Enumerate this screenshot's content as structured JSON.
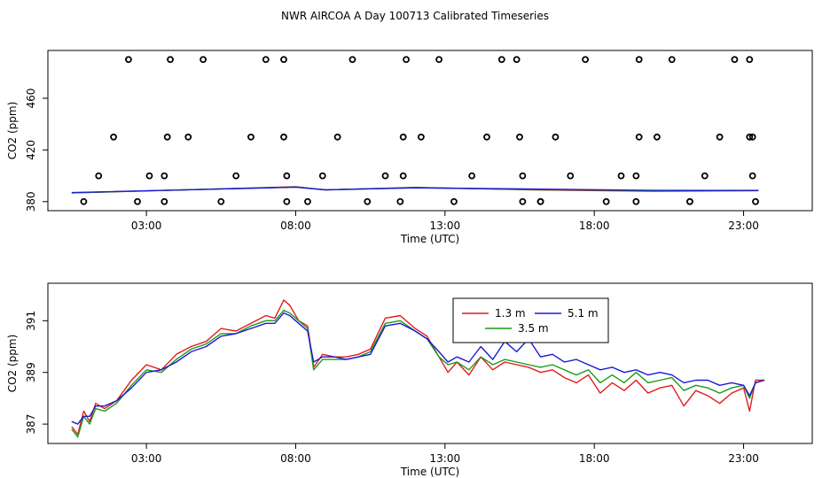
{
  "title": "NWR AIRCOA A  Day 100713  Calibrated Timeseries",
  "chart_data": [
    {
      "type": "scatter",
      "xlabel": "Time (UTC)",
      "ylabel": "CO2 (ppm)",
      "xlim": [
        -0.3,
        25.3
      ],
      "ylim": [
        373,
        497
      ],
      "xticks": [
        3,
        8,
        13,
        18,
        23
      ],
      "xtick_labels": [
        "03:00",
        "08:00",
        "13:00",
        "18:00",
        "23:00"
      ],
      "yticks": [
        380,
        420,
        460
      ],
      "ytick_labels": [
        "380",
        "420",
        "460"
      ],
      "calibration_points": [
        [
          0.9,
          380
        ],
        [
          1.4,
          400
        ],
        [
          1.9,
          430
        ],
        [
          2.4,
          490
        ],
        [
          2.7,
          380
        ],
        [
          3.1,
          400
        ],
        [
          3.6,
          380
        ],
        [
          3.6,
          400
        ],
        [
          3.7,
          430
        ],
        [
          3.8,
          490
        ],
        [
          4.4,
          430
        ],
        [
          4.9,
          490
        ],
        [
          5.5,
          380
        ],
        [
          6.0,
          400
        ],
        [
          6.5,
          430
        ],
        [
          7.0,
          490
        ],
        [
          7.6,
          490
        ],
        [
          7.6,
          430
        ],
        [
          7.7,
          400
        ],
        [
          7.7,
          380
        ],
        [
          8.4,
          380
        ],
        [
          8.9,
          400
        ],
        [
          9.4,
          430
        ],
        [
          9.9,
          490
        ],
        [
          10.4,
          380
        ],
        [
          11.0,
          400
        ],
        [
          11.5,
          380
        ],
        [
          11.6,
          400
        ],
        [
          11.6,
          430
        ],
        [
          11.7,
          490
        ],
        [
          12.2,
          430
        ],
        [
          12.8,
          490
        ],
        [
          13.3,
          380
        ],
        [
          13.9,
          400
        ],
        [
          14.4,
          430
        ],
        [
          14.9,
          490
        ],
        [
          15.4,
          490
        ],
        [
          15.5,
          430
        ],
        [
          15.6,
          400
        ],
        [
          15.6,
          380
        ],
        [
          16.2,
          380
        ],
        [
          16.2,
          380
        ],
        [
          16.7,
          430
        ],
        [
          17.2,
          400
        ],
        [
          17.7,
          490
        ],
        [
          18.4,
          380
        ],
        [
          18.9,
          400
        ],
        [
          19.4,
          380
        ],
        [
          19.4,
          400
        ],
        [
          19.5,
          430
        ],
        [
          19.5,
          490
        ],
        [
          20.1,
          430
        ],
        [
          20.6,
          490
        ],
        [
          21.2,
          380
        ],
        [
          21.2,
          380
        ],
        [
          21.7,
          400
        ],
        [
          22.2,
          430
        ],
        [
          22.7,
          490
        ],
        [
          23.2,
          490
        ],
        [
          23.2,
          430
        ],
        [
          23.3,
          430
        ],
        [
          23.3,
          400
        ],
        [
          23.4,
          380
        ]
      ],
      "series": [
        {
          "name": "1.3 m",
          "color": "#e41a1c",
          "x": [
            0.5,
            5,
            8,
            9,
            12,
            16,
            20,
            23.5
          ],
          "y": [
            386.8,
            389.6,
            391.5,
            389,
            391,
            389,
            388,
            388.5
          ]
        },
        {
          "name": "3.5 m",
          "color": "#1a9a1a",
          "x": [
            0.5,
            5,
            8,
            9,
            12,
            16,
            20,
            23.5
          ],
          "y": [
            386.8,
            389.6,
            391.3,
            389,
            390.8,
            389.3,
            388.5,
            388.7
          ]
        },
        {
          "name": "5.1 m",
          "color": "#1a1ad6",
          "x": [
            0.5,
            5,
            8,
            9,
            12,
            16,
            20,
            23.5
          ],
          "y": [
            387,
            389.5,
            391.2,
            389.2,
            390.7,
            389.7,
            388.7,
            388.6
          ]
        }
      ]
    },
    {
      "type": "line",
      "xlabel": "Time (UTC)",
      "ylabel": "CO2 (ppm)",
      "xlim": [
        -0.3,
        25.3
      ],
      "ylim": [
        386.25,
        392.45
      ],
      "xticks": [
        3,
        8,
        13,
        18,
        23
      ],
      "xtick_labels": [
        "03:00",
        "08:00",
        "13:00",
        "18:00",
        "23:00"
      ],
      "yticks": [
        387,
        389,
        391
      ],
      "ytick_labels": [
        "387",
        "389",
        "391"
      ],
      "legend_position": "top-center",
      "series": [
        {
          "name": "1.3 m",
          "color": "#e41a1c",
          "x": [
            0.5,
            0.7,
            0.9,
            1.1,
            1.3,
            1.6,
            2.0,
            2.5,
            3.0,
            3.5,
            4.0,
            4.5,
            5.0,
            5.5,
            6.0,
            6.5,
            7.0,
            7.3,
            7.6,
            7.8,
            8.1,
            8.4,
            8.6,
            8.9,
            9.3,
            9.7,
            10.1,
            10.5,
            11.0,
            11.5,
            12.0,
            12.4,
            12.8,
            13.1,
            13.4,
            13.8,
            14.2,
            14.6,
            15.0,
            15.4,
            15.8,
            16.2,
            16.6,
            17.0,
            17.4,
            17.8,
            18.2,
            18.6,
            19.0,
            19.4,
            19.8,
            20.2,
            20.6,
            21.0,
            21.4,
            21.8,
            22.2,
            22.6,
            23.0,
            23.2,
            23.4,
            23.7
          ],
          "y": [
            386.9,
            386.6,
            387.5,
            387.1,
            387.8,
            387.6,
            387.9,
            388.7,
            389.3,
            389.1,
            389.7,
            390.0,
            390.2,
            390.7,
            390.6,
            390.9,
            391.2,
            391.1,
            391.8,
            391.6,
            391.0,
            390.8,
            389.2,
            389.7,
            389.6,
            389.6,
            389.7,
            389.9,
            391.1,
            391.2,
            390.7,
            390.4,
            389.6,
            389.0,
            389.4,
            388.9,
            389.6,
            389.1,
            389.4,
            389.3,
            389.2,
            389.0,
            389.1,
            388.8,
            388.6,
            388.9,
            388.2,
            388.6,
            388.3,
            388.7,
            388.2,
            388.4,
            388.5,
            387.7,
            388.3,
            388.1,
            387.8,
            388.2,
            388.4,
            387.5,
            388.7,
            388.7
          ]
        },
        {
          "name": "3.5 m",
          "color": "#1a9a1a",
          "x": [
            0.5,
            0.7,
            0.9,
            1.1,
            1.3,
            1.6,
            2.0,
            2.5,
            3.0,
            3.5,
            4.0,
            4.5,
            5.0,
            5.5,
            6.0,
            6.5,
            7.0,
            7.3,
            7.6,
            7.8,
            8.1,
            8.4,
            8.6,
            8.9,
            9.3,
            9.7,
            10.1,
            10.5,
            11.0,
            11.5,
            12.0,
            12.4,
            12.8,
            13.1,
            13.4,
            13.8,
            14.2,
            14.6,
            15.0,
            15.4,
            15.8,
            16.2,
            16.6,
            17.0,
            17.4,
            17.8,
            18.2,
            18.6,
            19.0,
            19.4,
            19.8,
            20.2,
            20.6,
            21.0,
            21.4,
            21.8,
            22.2,
            22.6,
            23.0,
            23.2,
            23.4,
            23.7
          ],
          "y": [
            386.8,
            386.5,
            387.3,
            387.0,
            387.6,
            387.5,
            387.8,
            388.5,
            389.1,
            389.0,
            389.5,
            389.9,
            390.1,
            390.5,
            390.5,
            390.8,
            391.0,
            391.0,
            391.4,
            391.3,
            391.0,
            390.7,
            389.1,
            389.5,
            389.5,
            389.5,
            389.6,
            389.8,
            390.9,
            391.0,
            390.6,
            390.3,
            389.6,
            389.3,
            389.4,
            389.1,
            389.6,
            389.3,
            389.5,
            389.4,
            389.3,
            389.2,
            389.3,
            389.1,
            388.9,
            389.1,
            388.6,
            388.9,
            388.6,
            389.0,
            388.6,
            388.7,
            388.8,
            388.3,
            388.5,
            388.4,
            388.2,
            388.4,
            388.5,
            388.0,
            388.6,
            388.7
          ]
        },
        {
          "name": "5.1 m",
          "color": "#1a1ad6",
          "x": [
            0.5,
            0.7,
            0.9,
            1.1,
            1.3,
            1.6,
            2.0,
            2.5,
            3.0,
            3.5,
            4.0,
            4.5,
            5.0,
            5.5,
            6.0,
            6.5,
            7.0,
            7.3,
            7.6,
            7.8,
            8.1,
            8.4,
            8.6,
            8.9,
            9.3,
            9.7,
            10.1,
            10.5,
            11.0,
            11.5,
            12.0,
            12.4,
            12.8,
            13.1,
            13.4,
            13.8,
            14.2,
            14.6,
            15.0,
            15.4,
            15.8,
            16.2,
            16.6,
            17.0,
            17.4,
            17.8,
            18.2,
            18.6,
            19.0,
            19.4,
            19.8,
            20.2,
            20.6,
            21.0,
            21.4,
            21.8,
            22.2,
            22.6,
            23.0,
            23.2,
            23.4,
            23.7
          ],
          "y": [
            387.1,
            387.0,
            387.3,
            387.3,
            387.7,
            387.7,
            387.9,
            388.4,
            389.0,
            389.1,
            389.4,
            389.8,
            390.0,
            390.4,
            390.5,
            390.7,
            390.9,
            390.9,
            391.3,
            391.2,
            390.9,
            390.6,
            389.4,
            389.6,
            389.6,
            389.5,
            389.6,
            389.7,
            390.8,
            390.9,
            390.6,
            390.3,
            389.8,
            389.4,
            389.6,
            389.4,
            390.0,
            389.5,
            390.2,
            389.8,
            390.3,
            389.6,
            389.7,
            389.4,
            389.5,
            389.3,
            389.1,
            389.2,
            389.0,
            389.1,
            388.9,
            389.0,
            388.9,
            388.6,
            388.7,
            388.7,
            388.5,
            388.6,
            388.5,
            388.1,
            388.6,
            388.7
          ]
        }
      ]
    }
  ]
}
